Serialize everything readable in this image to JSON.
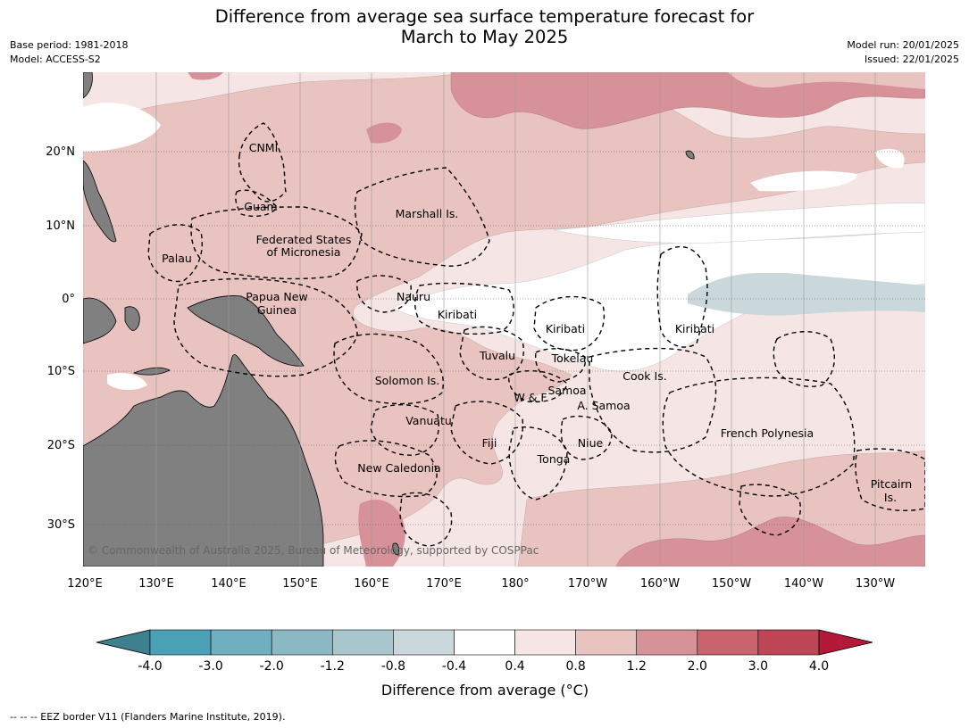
{
  "title": {
    "line1": "Difference from average sea surface temperature forecast for",
    "line2": "March to May 2025"
  },
  "meta": {
    "base_period": "Base period: 1981-2018",
    "model": "Model: ACCESS-S2",
    "model_run": "Model run: 20/01/2025",
    "issued": "Issued: 22/01/2025"
  },
  "map": {
    "lon_labels": [
      "120°E",
      "130°E",
      "140°E",
      "150°E",
      "160°E",
      "170°E",
      "180°",
      "170°W",
      "160°W",
      "150°W",
      "140°W",
      "130°W"
    ],
    "lat_labels": [
      "20°N",
      "10°N",
      "0°",
      "10°S",
      "20°S",
      "30°S"
    ],
    "region_labels": [
      {
        "text": "CNMI"
      },
      {
        "text": "Guam"
      },
      {
        "text": "Marshall Is."
      },
      {
        "text": "Federated States"
      },
      {
        "text": "of Micronesia"
      },
      {
        "text": "Palau"
      },
      {
        "text": "Nauru"
      },
      {
        "text": "Papua New"
      },
      {
        "text": "Guinea"
      },
      {
        "text": "Kiribati"
      },
      {
        "text": "Kiribati"
      },
      {
        "text": "Kiribati"
      },
      {
        "text": "Tuvalu"
      },
      {
        "text": "Tokelau"
      },
      {
        "text": "Cook Is."
      },
      {
        "text": "Solomon Is."
      },
      {
        "text": "W & F"
      },
      {
        "text": "Samoa"
      },
      {
        "text": "A. Samoa"
      },
      {
        "text": "Vanuatu"
      },
      {
        "text": "Fiji"
      },
      {
        "text": "Niue"
      },
      {
        "text": "French Polynesia"
      },
      {
        "text": "Tonga"
      },
      {
        "text": "New Caledonia"
      },
      {
        "text": "Pitcairn"
      },
      {
        "text": "Is."
      }
    ],
    "copyright": "© Commonwealth of Australia 2025, Bureau of Meteorology, supported by COSPPac",
    "colors": {
      "land": "#808080",
      "grid": "#9a9a9a"
    }
  },
  "colorbar": {
    "label": "Difference from average (°C)",
    "ticks": [
      "-4.0",
      "-3.0",
      "-2.0",
      "-1.2",
      "-0.8",
      "-0.4",
      "0.4",
      "0.8",
      "1.2",
      "2.0",
      "3.0",
      "4.0"
    ],
    "colors": [
      "#4aa1b5",
      "#6fafbf",
      "#8ab8c4",
      "#a8c7cc",
      "#cad8db",
      "#ffffff",
      "#f5e6e5",
      "#e8c3c0",
      "#d69199",
      "#c9646f",
      "#bd4555"
    ],
    "extend_low": "#3f8090",
    "extend_high": "#b31a3a"
  },
  "footer": "--  --  -- EEZ border V11 (Flanders Marine Institute, 2019)."
}
